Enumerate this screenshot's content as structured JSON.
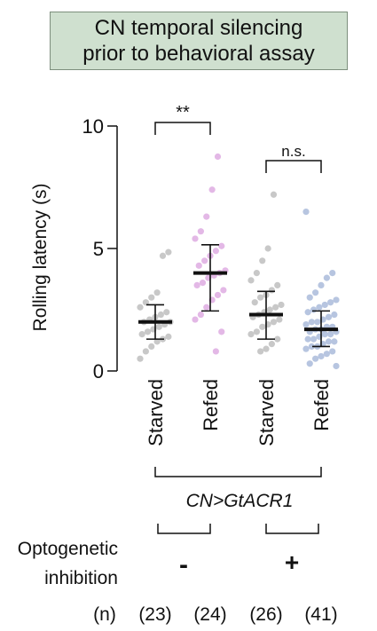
{
  "header": {
    "line1": "CN temporal silencing",
    "line2": "prior to behavioral assay",
    "background": "#cfe0cf"
  },
  "chart_data": {
    "type": "scatter",
    "title": "",
    "ylabel": "Rolling latency (s)",
    "ylim": [
      0,
      10
    ],
    "yticks": [
      0,
      5,
      10
    ],
    "categories": [
      "Starved",
      "Refed",
      "Starved",
      "Refed"
    ],
    "genotype_label": "CN>GtACR1",
    "optogenetic": {
      "label_line1": "Optogenetic",
      "label_line2": "inhibition",
      "conditions": [
        "-",
        "+"
      ]
    },
    "n_label": "(n)",
    "n_values": [
      "(23)",
      "(24)",
      "(26)",
      "(41)"
    ],
    "significance": [
      {
        "groups": [
          0,
          1
        ],
        "label": "**"
      },
      {
        "groups": [
          2,
          3
        ],
        "label": "n.s."
      }
    ],
    "series": [
      {
        "color": "#c8c8c8",
        "mean": 2.0,
        "sd_low": 1.3,
        "sd_high": 2.7,
        "points": [
          0.5,
          0.8,
          1.0,
          1.2,
          1.3,
          1.4,
          1.5,
          1.6,
          1.7,
          1.8,
          1.9,
          2.0,
          2.0,
          2.1,
          2.2,
          2.3,
          2.4,
          2.6,
          2.8,
          3.0,
          3.2,
          4.7,
          4.85
        ]
      },
      {
        "color": "#e3b8e6",
        "mean": 4.0,
        "sd_low": 2.45,
        "sd_high": 5.15,
        "points": [
          0.8,
          1.6,
          2.1,
          2.3,
          2.6,
          2.9,
          3.1,
          3.3,
          3.5,
          3.6,
          3.8,
          3.9,
          4.0,
          4.1,
          4.3,
          4.5,
          4.7,
          4.9,
          5.1,
          5.4,
          5.7,
          6.3,
          7.4,
          8.75
        ]
      },
      {
        "color": "#c8c8c8",
        "mean": 2.3,
        "sd_low": 1.3,
        "sd_high": 3.25,
        "points": [
          0.8,
          0.9,
          1.1,
          1.3,
          1.5,
          1.6,
          1.8,
          1.9,
          2.0,
          2.1,
          2.2,
          2.3,
          2.4,
          2.5,
          2.6,
          2.7,
          2.8,
          3.0,
          3.1,
          3.3,
          3.5,
          3.7,
          4.0,
          4.5,
          5.0,
          7.2
        ]
      },
      {
        "color": "#b7c5e0",
        "mean": 1.7,
        "sd_low": 1.0,
        "sd_high": 2.45,
        "points": [
          0.2,
          0.3,
          0.5,
          0.6,
          0.7,
          0.8,
          0.9,
          1.0,
          1.0,
          1.1,
          1.2,
          1.2,
          1.3,
          1.3,
          1.4,
          1.5,
          1.5,
          1.6,
          1.6,
          1.7,
          1.7,
          1.8,
          1.8,
          1.9,
          2.0,
          2.0,
          2.1,
          2.2,
          2.3,
          2.4,
          2.5,
          2.6,
          2.7,
          2.8,
          2.9,
          3.0,
          3.2,
          3.5,
          3.8,
          4.0,
          6.5
        ]
      }
    ]
  }
}
